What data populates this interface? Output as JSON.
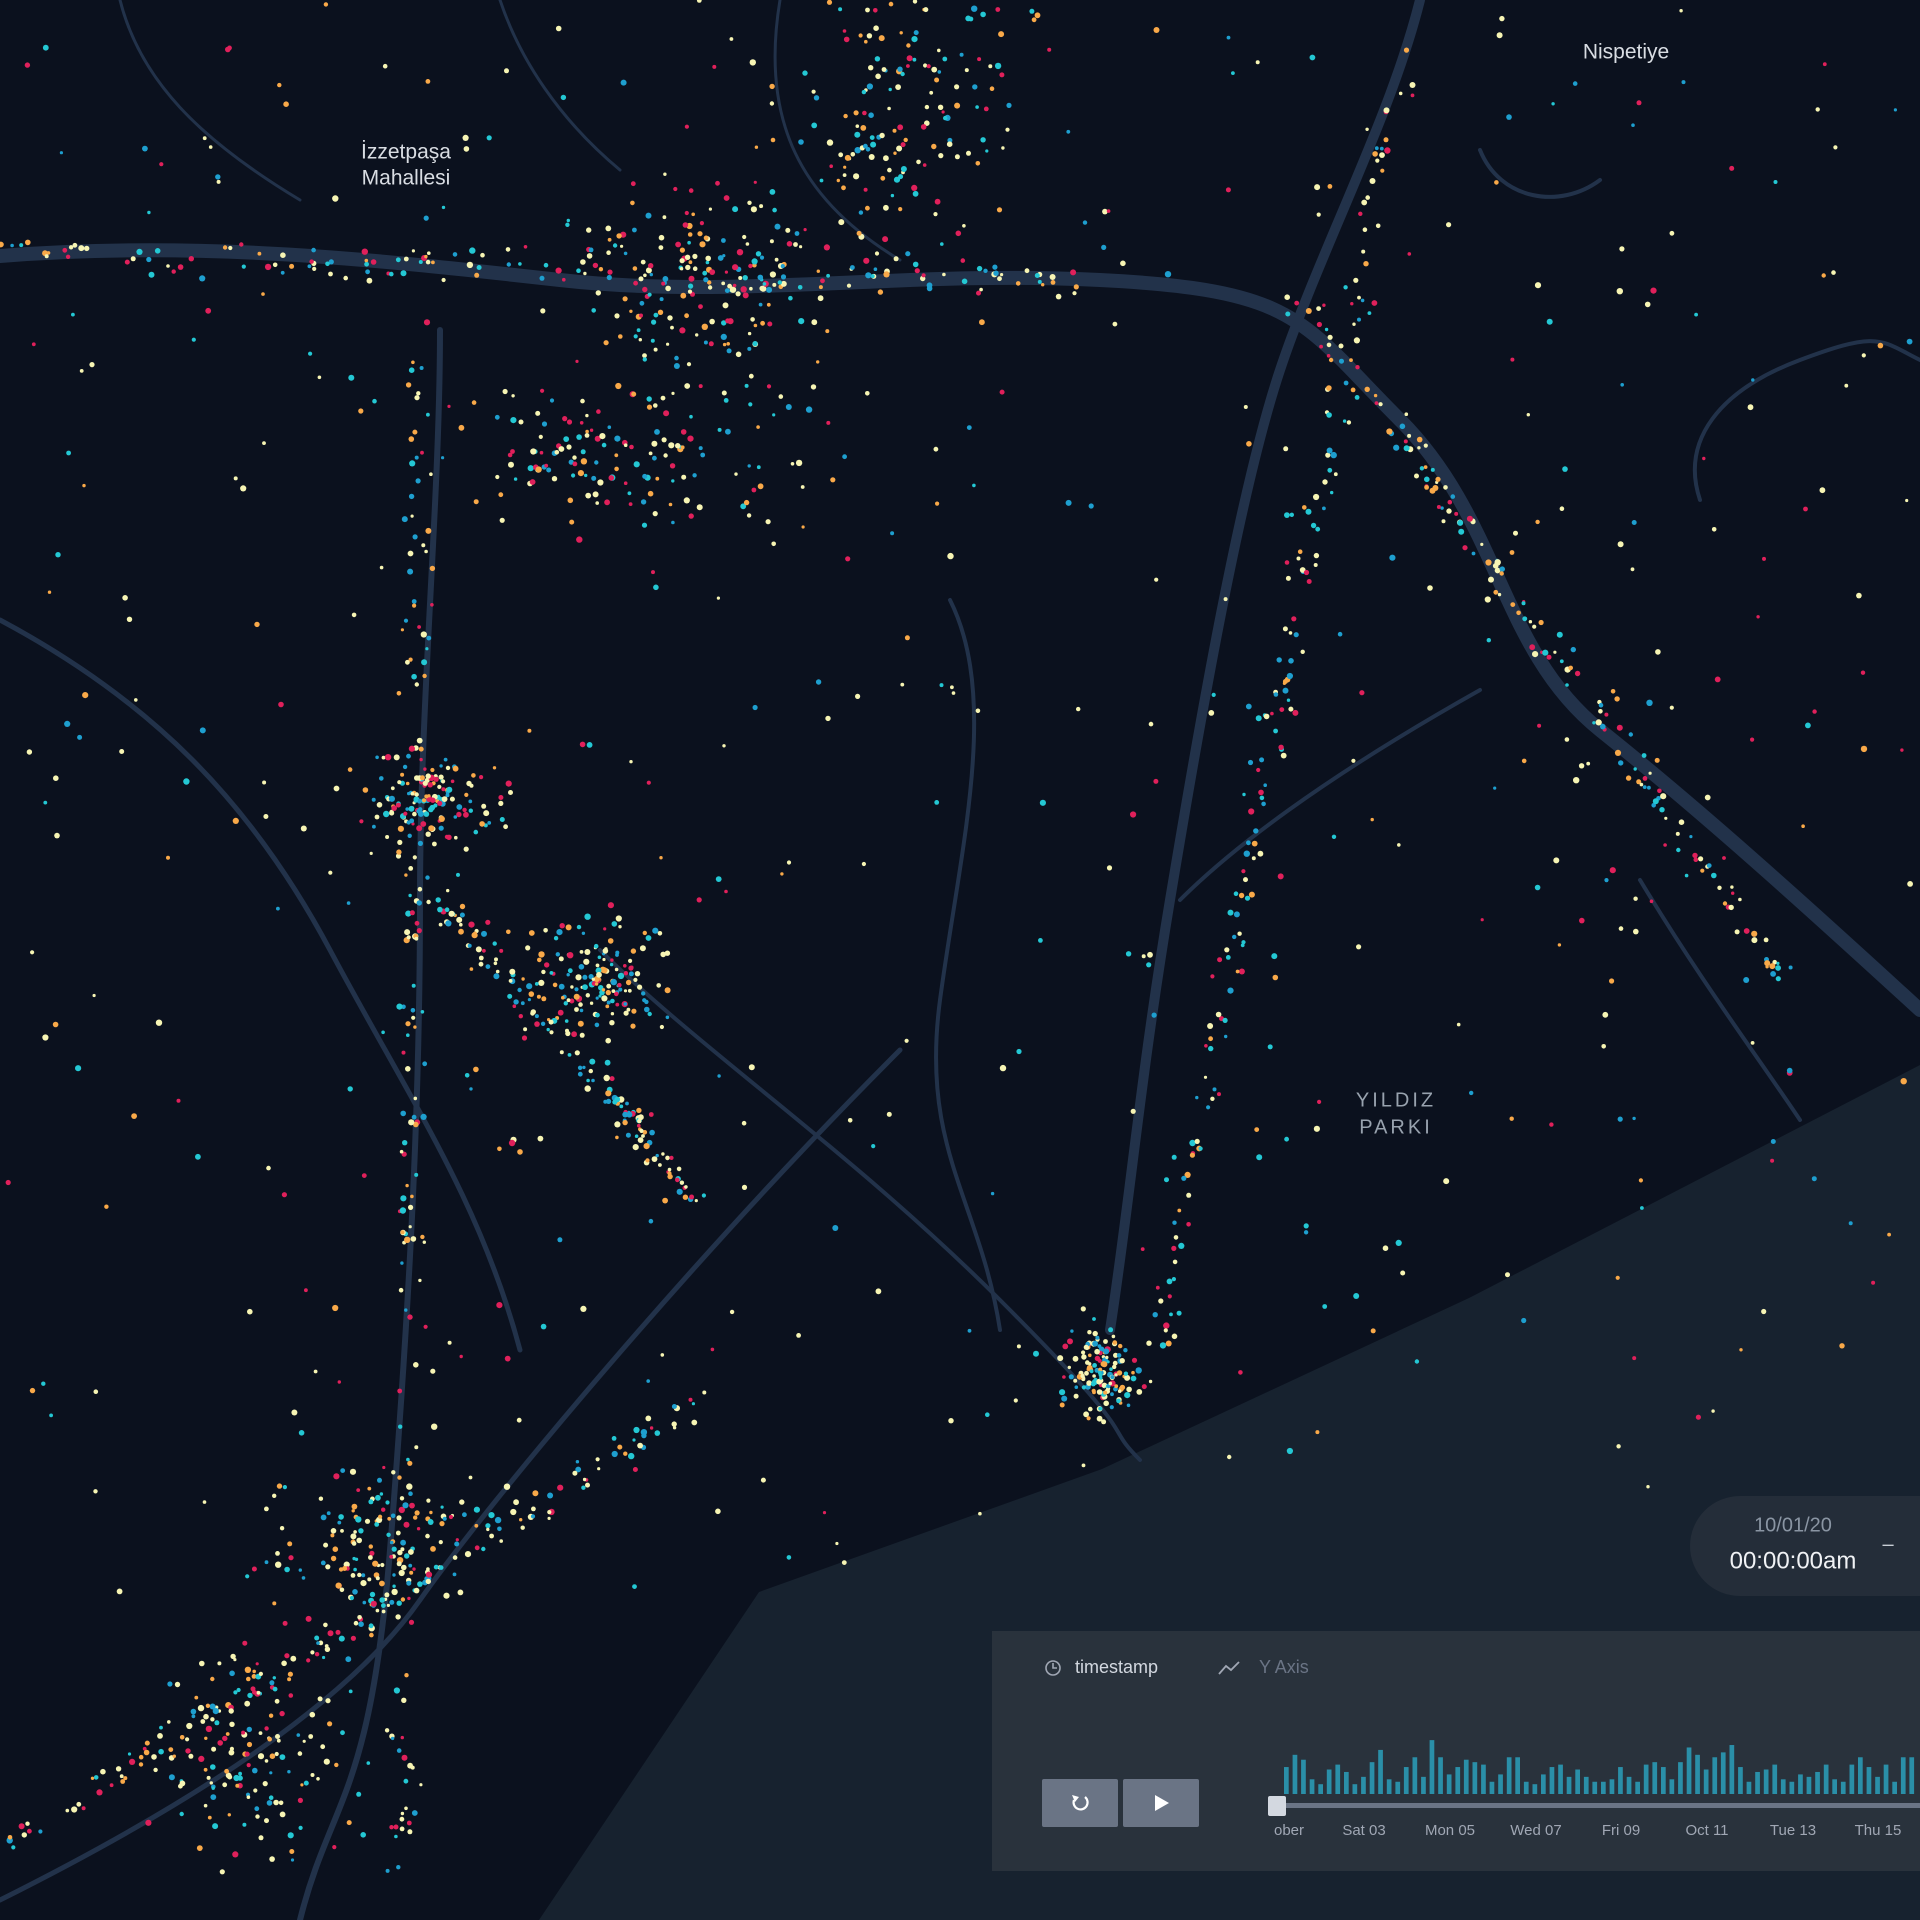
{
  "map": {
    "labels": [
      "Nispetiye",
      "İzzetpaşa",
      "Mahallesi",
      "YILDIZ",
      "PARKI"
    ]
  },
  "time_display": {
    "date": "10/01/20",
    "time": "00:00:00am",
    "separator": "–"
  },
  "panel": {
    "x_field": "timestamp",
    "y_axis": "Y Axis",
    "histogram": {
      "color": "#2a8fa8",
      "values": [
        22,
        32,
        28,
        12,
        8,
        20,
        24,
        18,
        8,
        14,
        26,
        36,
        12,
        10,
        22,
        30,
        14,
        44,
        30,
        16,
        22,
        28,
        26,
        24,
        10,
        16,
        30,
        30,
        10,
        8,
        16,
        22,
        24,
        14,
        20,
        14,
        10,
        10,
        12,
        22,
        14,
        10,
        24,
        26,
        22,
        12,
        26,
        38,
        32,
        20,
        30,
        34,
        40,
        22,
        10,
        18,
        20,
        24,
        12,
        10,
        16,
        14,
        18,
        24,
        12,
        10,
        24,
        30,
        22,
        14,
        24,
        10,
        30,
        30
      ]
    },
    "axis_labels": [
      "ober",
      "Sat 03",
      "Mon 05",
      "Wed 07",
      "Fri 09",
      "Oct 11",
      "Tue 13",
      "Thu 15"
    ]
  }
}
